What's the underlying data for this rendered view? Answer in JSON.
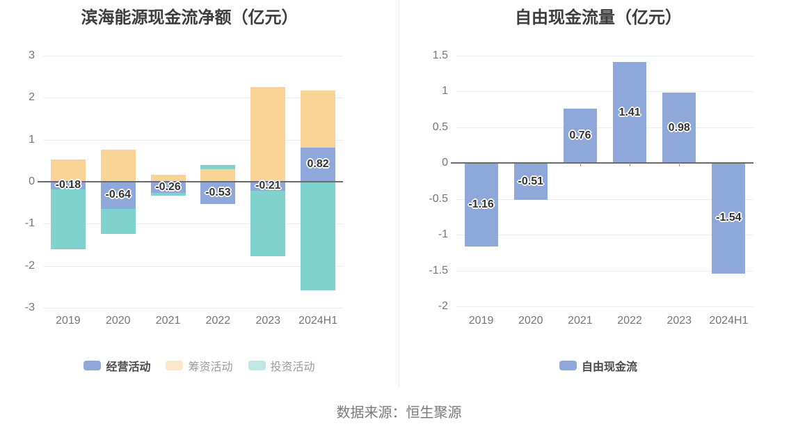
{
  "chart_data": [
    {
      "type": "bar",
      "stacked": true,
      "title": "滨海能源现金流净额（亿元）",
      "categories": [
        "2019",
        "2020",
        "2021",
        "2022",
        "2023",
        "2024H1"
      ],
      "y_ticks": [
        "3",
        "2",
        "1",
        "0",
        "-1",
        "-2",
        "-3"
      ],
      "ylim": [
        -3,
        3
      ],
      "grid": true,
      "legend_position": "bottom",
      "series": [
        {
          "id": "operating",
          "name": "经营活动",
          "color": "#8EA9D9",
          "values": [
            -0.18,
            -0.64,
            -0.26,
            -0.53,
            -0.21,
            0.82
          ],
          "labels": [
            "-0.18",
            "-0.64",
            "-0.26",
            "-0.53",
            "-0.21",
            "0.82"
          ]
        },
        {
          "id": "financing",
          "name": "筹资活动",
          "color": "#FAD397",
          "values": [
            0.53,
            0.76,
            0.16,
            0.3,
            2.25,
            1.35
          ]
        },
        {
          "id": "investing",
          "name": "投资活动",
          "color": "#80D2CF",
          "values": [
            -1.43,
            -0.61,
            -0.08,
            0.1,
            -1.57,
            -2.59
          ]
        }
      ],
      "legend": [
        {
          "id": "operating",
          "label": "经营活动",
          "swatch": "#8EA9D9",
          "muted": false
        },
        {
          "id": "financing",
          "label": "筹资活动",
          "swatch": "#FBE7C9",
          "muted": true
        },
        {
          "id": "investing",
          "label": "投资活动",
          "swatch": "#BFE8E5",
          "muted": true
        }
      ]
    },
    {
      "type": "bar",
      "stacked": false,
      "title": "自由现金流量（亿元）",
      "categories": [
        "2019",
        "2020",
        "2021",
        "2022",
        "2023",
        "2024H1"
      ],
      "y_ticks": [
        "1.5",
        "1",
        "0.5",
        "0",
        "-0.5",
        "-1",
        "-1.5",
        "-2"
      ],
      "ylim": [
        -2,
        1.5
      ],
      "grid": true,
      "legend_position": "bottom",
      "series": [
        {
          "id": "free-cash-flow",
          "name": "自由现金流",
          "color": "#8EA9D9",
          "values": [
            -1.16,
            -0.51,
            0.76,
            1.41,
            0.98,
            -1.54
          ],
          "labels": [
            "-1.16",
            "-0.51",
            "0.76",
            "1.41",
            "0.98",
            "-1.54"
          ]
        }
      ],
      "legend": [
        {
          "id": "free-cash-flow",
          "label": "自由现金流",
          "swatch": "#8EA9D9",
          "muted": false
        }
      ]
    }
  ],
  "source": "数据来源：恒生聚源",
  "colors": {
    "background": "#FFFFFF",
    "title_text": "#3D3D3D",
    "axis_text": "#757575",
    "data_label_text": "#333333",
    "axis_line": "#6B6B6B",
    "grid_line": "#E8EEF6",
    "muted_legend_text": "#9B9B9B",
    "divider": "#EDEDED"
  }
}
